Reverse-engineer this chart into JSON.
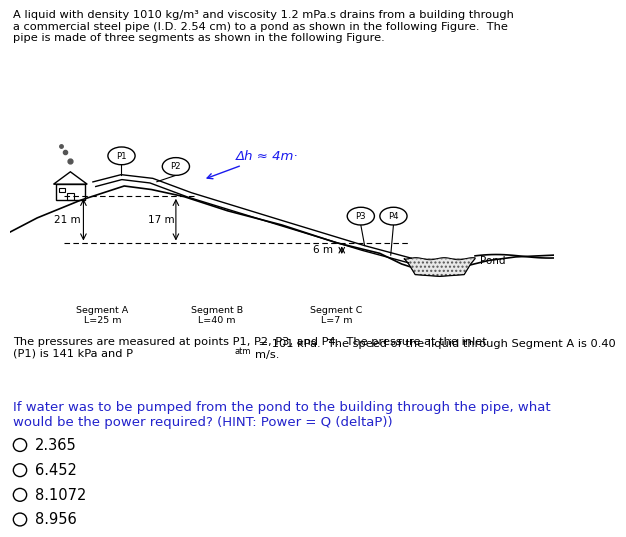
{
  "title_text": "A liquid with density 1010 kg/m³ and viscosity 1.2 mPa.s drains from a building through\na commercial steel pipe (I.D. 2.54 cm) to a pond as shown in the following Figure.  The\npipe is made of three segments as shown in the following Figure.",
  "description_text": "The pressures are measured at points P1, P2, P3, and P4.  The pressure at the inlet\n(P1) is 141 kPa and P",
  "description_text2": "atm",
  "description_text3": " = 101 kPa.  The speed of the liquid through Segment A is 0.40\nm/s.",
  "question_text": "If water was to be pumped from the pond to the building through the pipe, what\nwould be the power required? (HINT: Power = Q (deltaP))",
  "choices": [
    "2.365",
    "6.452",
    "8.1072",
    "8.956"
  ],
  "annotation_dh": "Δh ≈ 4m·",
  "segment_labels": [
    "Segment A\nL=25 m",
    "Segment B\nL=40 m",
    "Segment C\nL=7 m"
  ],
  "heights": [
    "21 m",
    "17 m",
    "6 m"
  ],
  "pressure_points": [
    "P1",
    "P2",
    "P3",
    "P4"
  ],
  "pond_label": "Pond",
  "bg_color": "#ffffff",
  "text_color": "#000000",
  "question_color": "#2222cc",
  "dh_color": "#1a1aee"
}
